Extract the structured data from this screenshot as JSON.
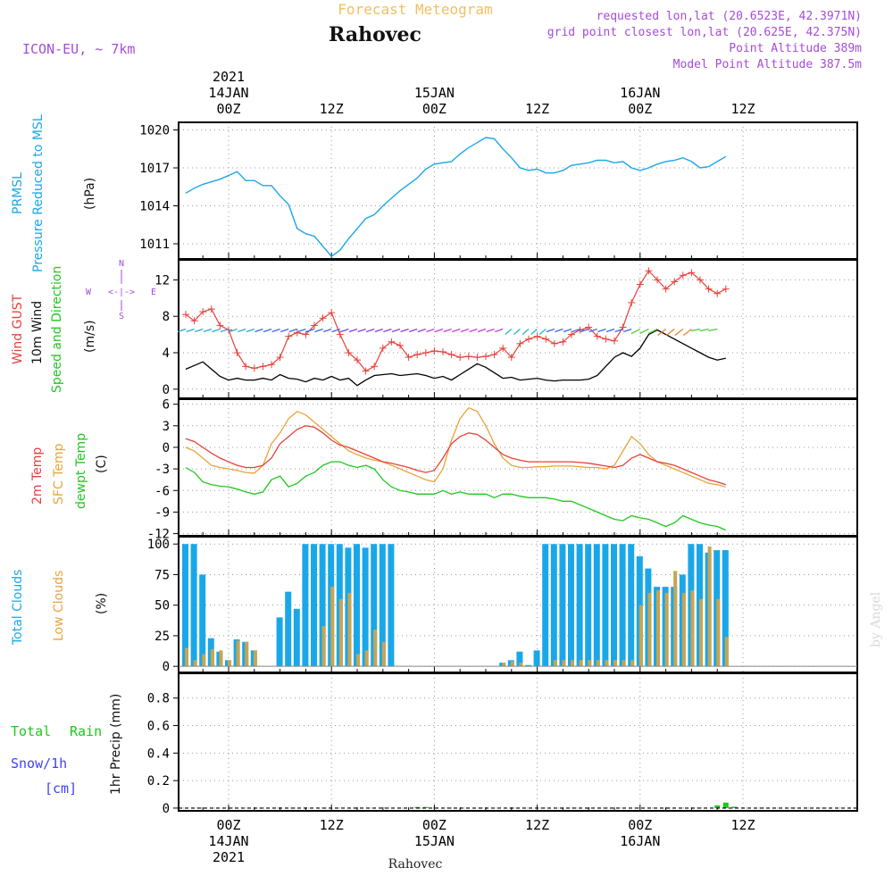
{
  "header": {
    "product_title": "Forecast Meteogram",
    "location": "Rahovec",
    "model": "ICON-EU, ~ 7km",
    "requested": "requested lon,lat (20.6523E, 42.3971N)",
    "grid_point": "grid point closest lon,lat (20.625E, 42.375N)",
    "point_altitude": "Point Altitude 389m",
    "model_altitude": "Model Point Altitude 387.5m",
    "credit": "by Angel",
    "bottom_label": "Rahovec"
  },
  "time_axis": {
    "hours_range": [
      -5,
      58
    ],
    "major_ticks": [
      0,
      12,
      24,
      36,
      48
    ],
    "top_labels": [
      {
        "hour": 0,
        "lines": [
          "2021",
          "14JAN",
          "00Z"
        ]
      },
      {
        "hour": 12,
        "lines": [
          "12Z"
        ]
      },
      {
        "hour": 24,
        "lines": [
          "15JAN",
          "00Z"
        ]
      },
      {
        "hour": 36,
        "lines": [
          "12Z"
        ]
      },
      {
        "hour": 48,
        "lines": [
          "16JAN",
          "00Z"
        ]
      },
      {
        "hour": 60,
        "lines": [
          "12Z"
        ]
      }
    ],
    "bottom_labels": [
      {
        "hour": 0,
        "lines": [
          "00Z",
          "14JAN",
          "2021"
        ]
      },
      {
        "hour": 12,
        "lines": [
          "12Z"
        ]
      },
      {
        "hour": 24,
        "lines": [
          "00Z",
          "15JAN"
        ]
      },
      {
        "hour": 36,
        "lines": [
          "12Z"
        ]
      },
      {
        "hour": 48,
        "lines": [
          "00Z",
          "16JAN"
        ]
      },
      {
        "hour": 60,
        "lines": [
          "12Z"
        ]
      }
    ]
  },
  "colors": {
    "pressure": "#1aa7e8",
    "gust": "#e8403a",
    "wind": "#000000",
    "temp2m": "#e8403a",
    "sfc": "#e8a43a",
    "dew": "#1ec81e",
    "total_clouds": "#1aa7e8",
    "low_clouds": "#c8a450",
    "rain": "#1ec81e",
    "snow": "#4040ff",
    "violet": "#a64bd9",
    "orange_title": "#f0c060"
  },
  "chart_data": [
    {
      "type": "line",
      "panel": "pressure",
      "labels": [
        "PRMSL",
        "Pressure Reduced to MSL"
      ],
      "ylabel": "(hPa)",
      "yticks": [
        1011,
        1014,
        1017,
        1020
      ],
      "ylim": [
        1009.8,
        1020.6
      ],
      "x": [
        -5,
        -4,
        -3,
        -2,
        -1,
        0,
        1,
        2,
        3,
        4,
        5,
        6,
        7,
        8,
        9,
        10,
        11,
        12,
        13,
        14,
        15,
        16,
        17,
        18,
        19,
        20,
        21,
        22,
        23,
        24,
        25,
        26,
        27,
        28,
        29,
        30,
        31,
        32,
        33,
        34,
        35,
        36,
        37,
        38,
        39,
        40,
        41,
        42,
        43,
        44,
        45,
        46,
        47,
        48,
        49,
        50,
        51,
        52,
        53,
        54,
        55,
        56,
        57,
        58
      ],
      "series": [
        {
          "name": "PRMSL",
          "values": [
            1015.0,
            1015.4,
            1015.7,
            1015.9,
            1016.1,
            1016.4,
            1016.7,
            1016.0,
            1016.0,
            1015.6,
            1015.6,
            1014.8,
            1014.1,
            1012.2,
            1011.8,
            1011.6,
            1010.8,
            1010.0,
            1010.5,
            1011.4,
            1012.2,
            1013.0,
            1013.3,
            1014.0,
            1014.6,
            1015.2,
            1015.7,
            1016.2,
            1016.9,
            1017.3,
            1017.4,
            1017.5,
            1018.1,
            1018.6,
            1019.0,
            1019.4,
            1019.3,
            1018.5,
            1017.8,
            1017.0,
            1016.8,
            1016.9,
            1016.6,
            1016.6,
            1016.8,
            1017.2,
            1017.3,
            1017.4,
            1017.6,
            1017.6,
            1017.4,
            1017.5,
            1017.0,
            1016.8,
            1017.0,
            1017.3,
            1017.5,
            1017.6,
            1017.8,
            1017.5,
            1017.0,
            1017.1,
            1017.5,
            1017.9
          ]
        }
      ]
    },
    {
      "type": "line",
      "panel": "wind",
      "labels": [
        "Wind GUST",
        "10m Wind",
        "Speed and Direction"
      ],
      "ylabel": "(m/s)",
      "compass": {
        "n": "N",
        "s": "S",
        "w": "W",
        "e": "E",
        "arrow": "<-|->"
      },
      "yticks": [
        0,
        4,
        8,
        12
      ],
      "ylim": [
        -1,
        14.2
      ],
      "x": [
        -5,
        -4,
        -3,
        -2,
        -1,
        0,
        1,
        2,
        3,
        4,
        5,
        6,
        7,
        8,
        9,
        10,
        11,
        12,
        13,
        14,
        15,
        16,
        17,
        18,
        19,
        20,
        21,
        22,
        23,
        24,
        25,
        26,
        27,
        28,
        29,
        30,
        31,
        32,
        33,
        34,
        35,
        36,
        37,
        38,
        39,
        40,
        41,
        42,
        43,
        44,
        45,
        46,
        47,
        48,
        49,
        50,
        51,
        52,
        53,
        54,
        55,
        56,
        57,
        58
      ],
      "series": [
        {
          "name": "Wind GUST",
          "values": [
            8.2,
            7.5,
            8.5,
            8.8,
            7.0,
            6.5,
            4.0,
            2.5,
            2.3,
            2.5,
            2.7,
            3.5,
            5.8,
            6.2,
            6.0,
            7.0,
            7.8,
            8.4,
            6.0,
            4.0,
            3.2,
            2.0,
            2.5,
            4.5,
            5.2,
            4.8,
            3.5,
            3.8,
            4.0,
            4.2,
            4.1,
            3.8,
            3.5,
            3.6,
            3.5,
            3.6,
            3.8,
            4.5,
            3.5,
            5.0,
            5.5,
            5.8,
            5.5,
            5.0,
            5.2,
            6.0,
            6.5,
            6.8,
            5.8,
            5.5,
            5.3,
            6.8,
            9.5,
            11.5,
            13.0,
            12.0,
            11.0,
            11.8,
            12.5,
            12.8,
            12.0,
            11.0,
            10.5,
            11.0
          ]
        },
        {
          "name": "10m Wind",
          "values": [
            2.2,
            2.6,
            3.0,
            2.2,
            1.4,
            1.0,
            1.2,
            1.0,
            1.0,
            1.2,
            1.0,
            1.6,
            1.2,
            1.1,
            0.8,
            1.2,
            1.0,
            1.4,
            1.0,
            1.2,
            0.4,
            1.0,
            1.5,
            1.6,
            1.7,
            1.5,
            1.6,
            1.7,
            1.5,
            1.2,
            1.4,
            1.0,
            1.6,
            2.2,
            2.8,
            2.4,
            1.8,
            1.2,
            1.3,
            1.0,
            1.1,
            1.2,
            1.0,
            0.9,
            1.0,
            1.0,
            1.0,
            1.1,
            1.5,
            2.5,
            3.5,
            4.0,
            3.6,
            4.5,
            6.0,
            6.5,
            6.0,
            5.5,
            5.0,
            4.5,
            4.0,
            3.5,
            3.2,
            3.4
          ]
        }
      ]
    },
    {
      "type": "line",
      "panel": "temperature",
      "labels": [
        "2m Temp",
        "SFC Temp",
        "dewpt Temp"
      ],
      "ylabel": "(C)",
      "yticks": [
        -12,
        -9,
        -6,
        -3,
        0,
        3,
        6
      ],
      "ylim": [
        -12.3,
        6.7
      ],
      "x": [
        -5,
        -4,
        -3,
        -2,
        -1,
        0,
        1,
        2,
        3,
        4,
        5,
        6,
        7,
        8,
        9,
        10,
        11,
        12,
        13,
        14,
        15,
        16,
        17,
        18,
        19,
        20,
        21,
        22,
        23,
        24,
        25,
        26,
        27,
        28,
        29,
        30,
        31,
        32,
        33,
        34,
        35,
        36,
        37,
        38,
        39,
        40,
        41,
        42,
        43,
        44,
        45,
        46,
        47,
        48,
        49,
        50,
        51,
        52,
        53,
        54,
        55,
        56,
        57,
        58
      ],
      "series": [
        {
          "name": "2m Temp",
          "values": [
            1.2,
            0.8,
            0.0,
            -0.8,
            -1.5,
            -2.0,
            -2.5,
            -2.8,
            -2.8,
            -2.5,
            -1.5,
            0.5,
            1.5,
            2.5,
            3.0,
            2.8,
            2.0,
            1.0,
            0.3,
            0.0,
            -0.5,
            -1.0,
            -1.5,
            -2.0,
            -2.2,
            -2.5,
            -2.8,
            -3.2,
            -3.5,
            -3.2,
            -1.5,
            0.5,
            1.5,
            2.0,
            1.8,
            1.0,
            0.0,
            -1.0,
            -1.5,
            -1.8,
            -2.0,
            -2.0,
            -2.0,
            -2.0,
            -2.0,
            -2.0,
            -2.1,
            -2.2,
            -2.4,
            -2.6,
            -2.8,
            -2.5,
            -1.5,
            -1.0,
            -1.5,
            -2.0,
            -2.2,
            -2.5,
            -3.0,
            -3.5,
            -4.0,
            -4.5,
            -4.8,
            -5.2
          ]
        },
        {
          "name": "SFC Temp",
          "values": [
            0.0,
            -0.5,
            -1.5,
            -2.5,
            -2.8,
            -3.0,
            -3.2,
            -3.5,
            -3.6,
            -2.5,
            0.5,
            2.0,
            4.0,
            5.0,
            4.5,
            3.5,
            2.5,
            1.5,
            0.5,
            -0.5,
            -1.0,
            -1.5,
            -1.8,
            -2.0,
            -2.5,
            -3.0,
            -3.5,
            -4.0,
            -4.5,
            -4.8,
            -3.0,
            1.0,
            4.0,
            5.5,
            5.0,
            3.0,
            0.5,
            -1.5,
            -2.5,
            -2.8,
            -2.8,
            -2.7,
            -2.7,
            -2.6,
            -2.6,
            -2.6,
            -2.7,
            -2.8,
            -2.8,
            -3.0,
            -2.5,
            -0.5,
            1.5,
            0.5,
            -1.0,
            -2.0,
            -2.5,
            -3.0,
            -3.5,
            -4.0,
            -4.5,
            -5.0,
            -5.2,
            -5.5
          ]
        },
        {
          "name": "dewpt Temp",
          "values": [
            -2.8,
            -3.5,
            -4.8,
            -5.2,
            -5.4,
            -5.5,
            -5.8,
            -6.2,
            -6.5,
            -6.2,
            -4.5,
            -4.0,
            -5.5,
            -5.0,
            -4.0,
            -3.5,
            -2.5,
            -2.0,
            -2.0,
            -2.5,
            -2.8,
            -2.5,
            -3.0,
            -4.5,
            -5.5,
            -6.0,
            -6.2,
            -6.5,
            -6.5,
            -6.5,
            -6.0,
            -6.5,
            -6.2,
            -6.5,
            -6.5,
            -6.5,
            -7.0,
            -6.5,
            -6.5,
            -6.8,
            -7.0,
            -7.0,
            -7.0,
            -7.2,
            -7.5,
            -7.5,
            -8.0,
            -8.5,
            -9.0,
            -9.5,
            -10.0,
            -10.2,
            -9.5,
            -9.8,
            -10.0,
            -10.5,
            -11.0,
            -10.5,
            -9.5,
            -10.0,
            -10.5,
            -10.8,
            -11.0,
            -11.5
          ]
        }
      ]
    },
    {
      "type": "bar",
      "panel": "clouds",
      "labels": [
        "Total Clouds",
        "Low Clouds"
      ],
      "ylabel": "(%)",
      "yticks": [
        0,
        25,
        50,
        75,
        100
      ],
      "ylim": [
        -5,
        106
      ],
      "x": [
        -5,
        -4,
        -3,
        -2,
        -1,
        0,
        1,
        2,
        3,
        4,
        5,
        6,
        7,
        8,
        9,
        10,
        11,
        12,
        13,
        14,
        15,
        16,
        17,
        18,
        19,
        20,
        21,
        22,
        23,
        24,
        25,
        26,
        27,
        28,
        29,
        30,
        31,
        32,
        33,
        34,
        35,
        36,
        37,
        38,
        39,
        40,
        41,
        42,
        43,
        44,
        45,
        46,
        47,
        48,
        49,
        50,
        51,
        52,
        53,
        54,
        55,
        56,
        57,
        58
      ],
      "series": [
        {
          "name": "Total Clouds",
          "values": [
            100,
            100,
            75,
            23,
            12,
            5,
            22,
            20,
            13,
            0,
            0,
            40,
            61,
            47,
            100,
            100,
            100,
            100,
            100,
            97,
            100,
            97,
            100,
            100,
            100,
            0,
            0,
            0,
            0,
            0,
            0,
            0,
            0,
            0,
            0,
            0,
            0,
            3,
            5,
            12,
            1,
            13,
            100,
            100,
            100,
            100,
            100,
            100,
            100,
            100,
            100,
            100,
            100,
            90,
            80,
            65,
            65,
            65,
            75,
            100,
            100,
            93,
            95,
            95
          ]
        },
        {
          "name": "Low Clouds",
          "values": [
            15,
            5,
            10,
            14,
            13,
            5,
            21,
            20,
            13,
            0,
            0,
            0,
            0,
            0,
            0,
            0,
            33,
            65,
            55,
            60,
            10,
            13,
            30,
            20,
            0,
            0,
            0,
            0,
            0,
            0,
            0,
            0,
            0,
            0,
            0,
            0,
            0,
            3,
            4,
            3,
            0,
            0,
            0,
            5,
            5,
            5,
            5,
            5,
            5,
            5,
            5,
            5,
            5,
            50,
            60,
            62,
            60,
            78,
            60,
            62,
            55,
            98,
            55,
            24
          ]
        }
      ]
    },
    {
      "type": "bar",
      "panel": "precipitation",
      "labels": [
        "Total",
        "Rain",
        "Snow/1h",
        "[cm]"
      ],
      "ylabel": "1hr Precip (mm)",
      "yticks": [
        0,
        0.2,
        0.4,
        0.6,
        0.8
      ],
      "ylim": [
        -0.02,
        0.98
      ],
      "x": [
        22,
        23,
        57,
        58,
        59
      ],
      "series": [
        {
          "name": "Total Rain",
          "values": [
            0.008,
            0.008,
            0.02,
            0.04,
            0.01
          ]
        },
        {
          "name": "Snow/1h",
          "values": [
            0,
            0,
            0,
            0,
            0
          ]
        }
      ]
    }
  ]
}
